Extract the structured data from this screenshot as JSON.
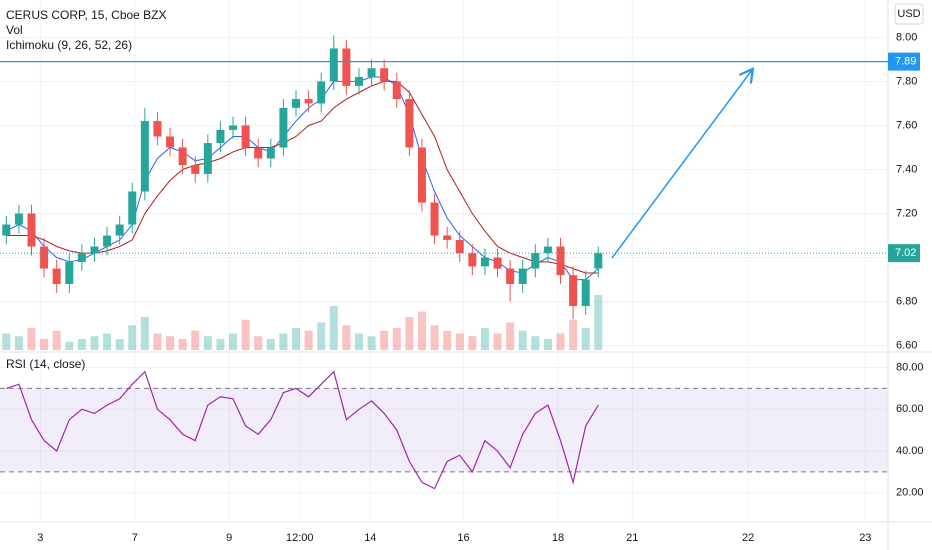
{
  "chart_data": [
    {
      "type": "candlestick",
      "title": "CERUS CORP, 15, Cboe BZX",
      "currency": "USD",
      "volume_label": "Vol",
      "ichimoku_label": "Ichimoku (9, 26, 52, 26)",
      "up_color": "#26a69a",
      "down_color": "#ef5350",
      "x": [
        0.5,
        1.5,
        2.5,
        3.5,
        4.5,
        5.5,
        6.5,
        7.5,
        8.5,
        9.5,
        10.5,
        11.5,
        12.5,
        13.5,
        14.5,
        15.5,
        16.5,
        17.5,
        18.5,
        19.5,
        20.5,
        21.5,
        22.5,
        23.5,
        24.5,
        25.5,
        26.5,
        27.5,
        28.5,
        29.5,
        30.5,
        31.5,
        32.5,
        33.5,
        34.5,
        35.5,
        36.5,
        37.5,
        38.5,
        39.5,
        40.5,
        41.5,
        42.5,
        43.5,
        44.5,
        45.5,
        46.5,
        47.5
      ],
      "open": [
        7.1,
        7.15,
        7.2,
        7.05,
        6.95,
        6.88,
        6.98,
        7.02,
        7.05,
        7.1,
        7.15,
        7.3,
        7.62,
        7.55,
        7.5,
        7.42,
        7.38,
        7.52,
        7.58,
        7.6,
        7.5,
        7.45,
        7.5,
        7.68,
        7.72,
        7.7,
        7.8,
        7.95,
        7.78,
        7.82,
        7.86,
        7.8,
        7.72,
        7.5,
        7.25,
        7.1,
        7.08,
        7.02,
        6.96,
        7.0,
        6.95,
        6.88,
        6.95,
        7.02,
        7.05,
        6.92,
        6.78,
        6.95
      ],
      "high": [
        7.19,
        7.24,
        7.24,
        7.09,
        6.99,
        7.02,
        7.06,
        7.09,
        7.14,
        7.19,
        7.34,
        7.68,
        7.66,
        7.59,
        7.54,
        7.46,
        7.56,
        7.62,
        7.64,
        7.64,
        7.54,
        7.54,
        7.72,
        7.76,
        7.76,
        7.84,
        8.01,
        7.99,
        7.86,
        7.9,
        7.9,
        7.84,
        7.76,
        7.54,
        7.29,
        7.14,
        7.12,
        7.06,
        7.04,
        7.04,
        6.99,
        6.99,
        7.06,
        7.09,
        7.09,
        6.96,
        6.94,
        7.05
      ],
      "low": [
        7.06,
        7.11,
        7.01,
        6.91,
        6.84,
        6.84,
        6.94,
        6.98,
        7.01,
        7.06,
        7.11,
        7.26,
        7.51,
        7.46,
        7.38,
        7.34,
        7.34,
        7.48,
        7.54,
        7.46,
        7.41,
        7.41,
        7.46,
        7.64,
        7.66,
        7.66,
        7.76,
        7.74,
        7.74,
        7.78,
        7.76,
        7.68,
        7.46,
        7.21,
        7.06,
        7.04,
        6.98,
        6.92,
        6.92,
        6.91,
        6.8,
        6.84,
        6.91,
        6.98,
        6.88,
        6.72,
        6.74,
        6.91
      ],
      "close": [
        7.15,
        7.2,
        7.05,
        6.95,
        6.88,
        6.98,
        7.02,
        7.05,
        7.1,
        7.15,
        7.3,
        7.62,
        7.55,
        7.5,
        7.42,
        7.38,
        7.52,
        7.58,
        7.6,
        7.5,
        7.45,
        7.5,
        7.68,
        7.72,
        7.7,
        7.8,
        7.95,
        7.78,
        7.82,
        7.86,
        7.8,
        7.72,
        7.5,
        7.25,
        7.1,
        7.08,
        7.02,
        6.96,
        7.0,
        6.95,
        6.88,
        6.95,
        7.02,
        7.05,
        6.92,
        6.78,
        6.9,
        7.02
      ],
      "volume": [
        30,
        25,
        40,
        20,
        35,
        15,
        20,
        25,
        30,
        20,
        45,
        60,
        30,
        25,
        20,
        35,
        25,
        20,
        30,
        55,
        25,
        20,
        30,
        40,
        35,
        50,
        80,
        45,
        30,
        25,
        35,
        40,
        60,
        70,
        45,
        35,
        30,
        25,
        40,
        30,
        50,
        35,
        25,
        20,
        30,
        55,
        40,
        100
      ],
      "lines": [
        {
          "color": "#2962ff",
          "values": [
            7.12,
            7.15,
            7.12,
            7.05,
            7.0,
            6.98,
            6.99,
            7.02,
            7.05,
            7.08,
            7.15,
            7.35,
            7.45,
            7.5,
            7.48,
            7.44,
            7.45,
            7.5,
            7.55,
            7.55,
            7.5,
            7.48,
            7.55,
            7.62,
            7.68,
            7.72,
            7.8,
            7.8,
            7.8,
            7.82,
            7.82,
            7.78,
            7.65,
            7.45,
            7.3,
            7.18,
            7.1,
            7.05,
            7.0,
            6.98,
            6.94,
            6.93,
            6.97,
            7.0,
            6.98,
            6.9,
            6.9,
            6.95
          ]
        },
        {
          "color": "#b71c1c",
          "values": [
            7.1,
            7.1,
            7.1,
            7.08,
            7.05,
            7.03,
            7.02,
            7.02,
            7.03,
            7.05,
            7.08,
            7.2,
            7.28,
            7.35,
            7.4,
            7.42,
            7.43,
            7.45,
            7.48,
            7.5,
            7.5,
            7.5,
            7.52,
            7.55,
            7.6,
            7.62,
            7.68,
            7.72,
            7.75,
            7.78,
            7.8,
            7.8,
            7.75,
            7.65,
            7.55,
            7.4,
            7.3,
            7.2,
            7.12,
            7.05,
            7.02,
            7.0,
            6.98,
            6.98,
            6.97,
            6.95,
            6.93,
            6.93
          ]
        }
      ],
      "hlines": [
        {
          "value": 7.89,
          "color": "#2196f3",
          "style": "solid"
        },
        {
          "value": 7.02,
          "color": "#26a69a",
          "style": "dotted"
        }
      ],
      "xlim": [
        0,
        70.5
      ],
      "ylim": [
        6.58,
        8.17
      ],
      "yticks": [
        {
          "value": 6.6,
          "label": "6.60"
        },
        {
          "value": 6.8,
          "label": "6.80"
        },
        {
          "value": 7.0,
          "label": "7.00"
        },
        {
          "value": 7.2,
          "label": "7.20"
        },
        {
          "value": 7.4,
          "label": "7.40"
        },
        {
          "value": 7.6,
          "label": "7.60"
        },
        {
          "value": 7.8,
          "label": "7.80"
        },
        {
          "value": 8.0,
          "label": "8.00"
        }
      ]
    },
    {
      "type": "line",
      "title": "RSI (14, close)",
      "color": "#9c27b0",
      "band_color": "#7e57c2",
      "x": [
        0.5,
        1.5,
        2.5,
        3.5,
        4.5,
        5.5,
        6.5,
        7.5,
        8.5,
        9.5,
        10.5,
        11.5,
        12.5,
        13.5,
        14.5,
        15.5,
        16.5,
        17.5,
        18.5,
        19.5,
        20.5,
        21.5,
        22.5,
        23.5,
        24.5,
        25.5,
        26.5,
        27.5,
        28.5,
        29.5,
        30.5,
        31.5,
        32.5,
        33.5,
        34.5,
        35.5,
        36.5,
        37.5,
        38.5,
        39.5,
        40.5,
        41.5,
        42.5,
        43.5,
        44.5,
        45.5,
        46.5,
        47.5
      ],
      "values": [
        70,
        72,
        55,
        45,
        40,
        55,
        60,
        58,
        62,
        65,
        72,
        78,
        60,
        55,
        48,
        45,
        62,
        66,
        65,
        52,
        48,
        55,
        68,
        70,
        66,
        72,
        78,
        55,
        60,
        64,
        58,
        50,
        35,
        25,
        22,
        35,
        38,
        30,
        45,
        40,
        32,
        48,
        58,
        62,
        45,
        25,
        52,
        62
      ],
      "bands": [
        70,
        30
      ],
      "xlim": [
        0,
        70.5
      ],
      "ylim": [
        6,
        86
      ],
      "yticks": [
        {
          "value": 20,
          "label": "20.00"
        },
        {
          "value": 40,
          "label": "40.00"
        },
        {
          "value": 60,
          "label": "60.00"
        },
        {
          "value": 80,
          "label": "80.00"
        }
      ],
      "xticks": [
        {
          "value": 3.2,
          "label": "3"
        },
        {
          "value": 10.7,
          "label": "7"
        },
        {
          "value": 18.2,
          "label": "9"
        },
        {
          "value": 23.8,
          "label": "12:00"
        },
        {
          "value": 29.4,
          "label": "14"
        },
        {
          "value": 36.8,
          "label": "16"
        },
        {
          "value": 44.3,
          "label": "18"
        },
        {
          "value": 50.2,
          "label": "21"
        },
        {
          "value": 59.4,
          "label": "22"
        },
        {
          "value": 68.7,
          "label": "23"
        }
      ]
    }
  ]
}
